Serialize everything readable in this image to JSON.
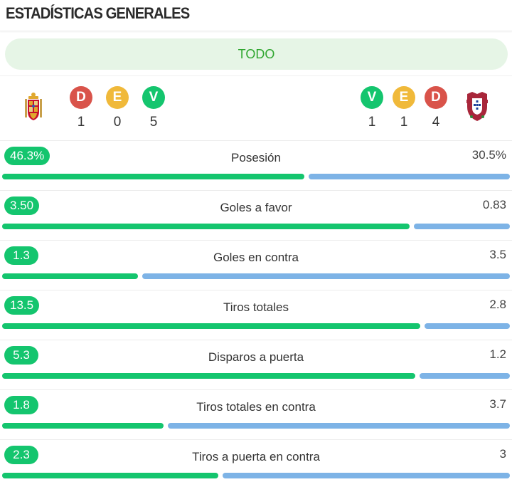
{
  "header": {
    "title": "ESTADÍSTICAS GENERALES"
  },
  "filter": {
    "label": "TODO"
  },
  "home": {
    "crest_icon": "spain-crest-icon",
    "record": [
      {
        "letter": "D",
        "count": "1",
        "color": "#d9534a"
      },
      {
        "letter": "E",
        "count": "0",
        "color": "#f0b93a"
      },
      {
        "letter": "V",
        "count": "5",
        "color": "#14c56e"
      }
    ]
  },
  "away": {
    "crest_icon": "portugal-crest-icon",
    "record": [
      {
        "letter": "V",
        "count": "1",
        "color": "#14c56e"
      },
      {
        "letter": "E",
        "count": "1",
        "color": "#f0b93a"
      },
      {
        "letter": "D",
        "count": "4",
        "color": "#d9534a"
      }
    ]
  },
  "colors": {
    "home_bar": "#14c56e",
    "away_bar": "#7db3e6",
    "accent_text": "#2fa62f"
  },
  "stats": [
    {
      "label": "Posesión",
      "home": "46.3%",
      "away": "30.5%",
      "home_share": 0.6,
      "away_share": 0.4
    },
    {
      "label": "Goles a favor",
      "home": "3.50",
      "away": "0.83",
      "home_share": 0.81,
      "away_share": 0.19
    },
    {
      "label": "Goles en contra",
      "home": "1.3",
      "away": "3.5",
      "home_share": 0.27,
      "away_share": 0.73
    },
    {
      "label": "Tiros totales",
      "home": "13.5",
      "away": "2.8",
      "home_share": 0.83,
      "away_share": 0.17
    },
    {
      "label": "Disparos a puerta",
      "home": "5.3",
      "away": "1.2",
      "home_share": 0.82,
      "away_share": 0.18
    },
    {
      "label": "Tiros totales en contra",
      "home": "1.8",
      "away": "3.7",
      "home_share": 0.32,
      "away_share": 0.68
    },
    {
      "label": "Tiros a puerta en contra",
      "home": "2.3",
      "away": "3",
      "home_share": 0.43,
      "away_share": 0.57
    }
  ]
}
